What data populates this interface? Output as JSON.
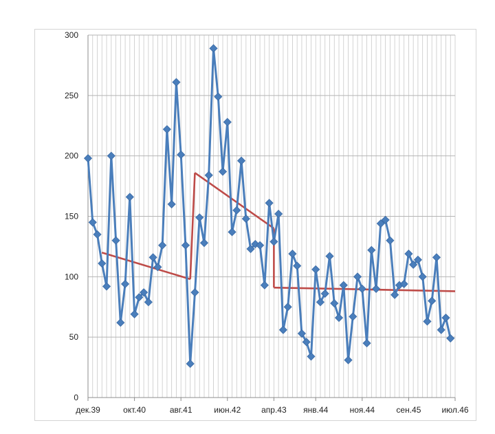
{
  "chart_data": {
    "type": "line",
    "title": "",
    "xlabel": "",
    "ylabel": "",
    "ylim": [
      0,
      300
    ],
    "y_ticks": [
      "0",
      "50",
      "100",
      "150",
      "200",
      "250",
      "300"
    ],
    "x_tick_labels": [
      "дек.39",
      "окт.40",
      "авг.41",
      "июн.42",
      "апр.43",
      "янв.44",
      "ноя.44",
      "сен.45",
      "июл.46"
    ],
    "x_start": "дек.39",
    "x_end": "июл.46",
    "grid": "vertical-monthly-and-horizontal",
    "series": [
      {
        "color": "#4a7ebb",
        "marker": "diamond",
        "values": [
          198,
          145,
          135,
          111,
          92,
          200,
          130,
          62,
          94,
          166,
          69,
          83,
          87,
          79,
          116,
          108,
          126,
          222,
          160,
          261,
          201,
          126,
          28,
          87,
          149,
          128,
          184,
          289,
          249,
          187,
          228,
          137,
          155,
          196,
          148,
          123,
          127,
          126,
          93,
          161,
          129,
          152,
          56,
          75,
          119,
          109,
          53,
          46,
          34,
          106,
          79,
          86,
          117,
          78,
          66,
          93,
          31,
          67,
          100,
          90,
          45,
          122,
          90,
          144,
          147,
          130,
          85,
          93,
          94,
          119,
          110,
          114,
          100,
          63,
          80,
          116,
          56,
          66,
          49
        ]
      },
      {
        "color": "#be4b48",
        "segments": [
          {
            "from": "мар.40",
            "to": "окт.41",
            "start_value": 120,
            "end_value": 98
          },
          {
            "from": "ноя.41",
            "to": "апр.43",
            "start_value": 186,
            "end_value": 140
          },
          {
            "from": "апр.43",
            "to": "июл.46",
            "start_value": 91,
            "end_value": 88
          }
        ]
      }
    ]
  }
}
